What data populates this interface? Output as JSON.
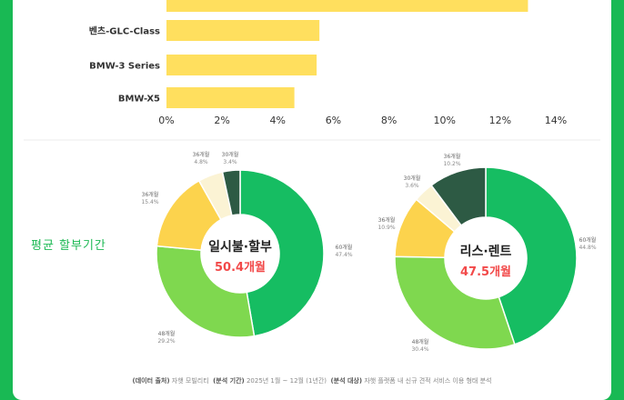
{
  "chart_data": [
    {
      "type": "bar",
      "orientation": "horizontal",
      "categories": [
        "",
        "벤츠-GLC-Class",
        "BMW-3 Series",
        "BMW-X5"
      ],
      "values": [
        13.0,
        5.5,
        5.4,
        4.6
      ],
      "xlim": [
        0,
        14
      ],
      "xticks": [
        "0%",
        "2%",
        "4%",
        "6%",
        "8%",
        "10%",
        "12%",
        "14%"
      ],
      "bar_color": "#ffdf5e",
      "grid": false
    },
    {
      "type": "pie",
      "title": "일시불·할부",
      "center_value": "50.4개월",
      "labels": [
        "60개월",
        "48개월",
        "36개월",
        "36개월",
        "30개월"
      ],
      "values": [
        47.4,
        29.2,
        15.4,
        4.8,
        3.4
      ],
      "value_labels": [
        "47.4%",
        "29.2%",
        "15.4%",
        "4.8%",
        "3.4%"
      ],
      "colors": [
        "#16bd62",
        "#7fd84f",
        "#fcd34d",
        "#fbf3d4",
        "#2d5a44"
      ]
    },
    {
      "type": "pie",
      "title": "리스·렌트",
      "center_value": "47.5개월",
      "labels": [
        "60개월",
        "48개월",
        "36개월",
        "30개월",
        "36개월"
      ],
      "values": [
        44.8,
        30.4,
        10.9,
        3.6,
        10.2
      ],
      "value_labels": [
        "44.8%",
        "30.4%",
        "10.9%",
        "3.6%",
        "10.2%"
      ],
      "colors": [
        "#16bd62",
        "#7fd84f",
        "#fcd34d",
        "#fbf3d4",
        "#2d5a44"
      ]
    }
  ],
  "section_label": "평균 할부기간",
  "footer": {
    "source_label": "(데이터 출처)",
    "source": "자햇 모빌리티",
    "period_label": "(분석 기간)",
    "period": "2025년 1월 ~ 12월 (1년간)",
    "target_label": "(분석 대상)",
    "target": "자햇 플랫폼 내 신규 견적 서비스 이용 형태 분석"
  },
  "colors": {
    "background": "#19b954",
    "center_text": "#f24949",
    "axis_text": "#333333"
  }
}
